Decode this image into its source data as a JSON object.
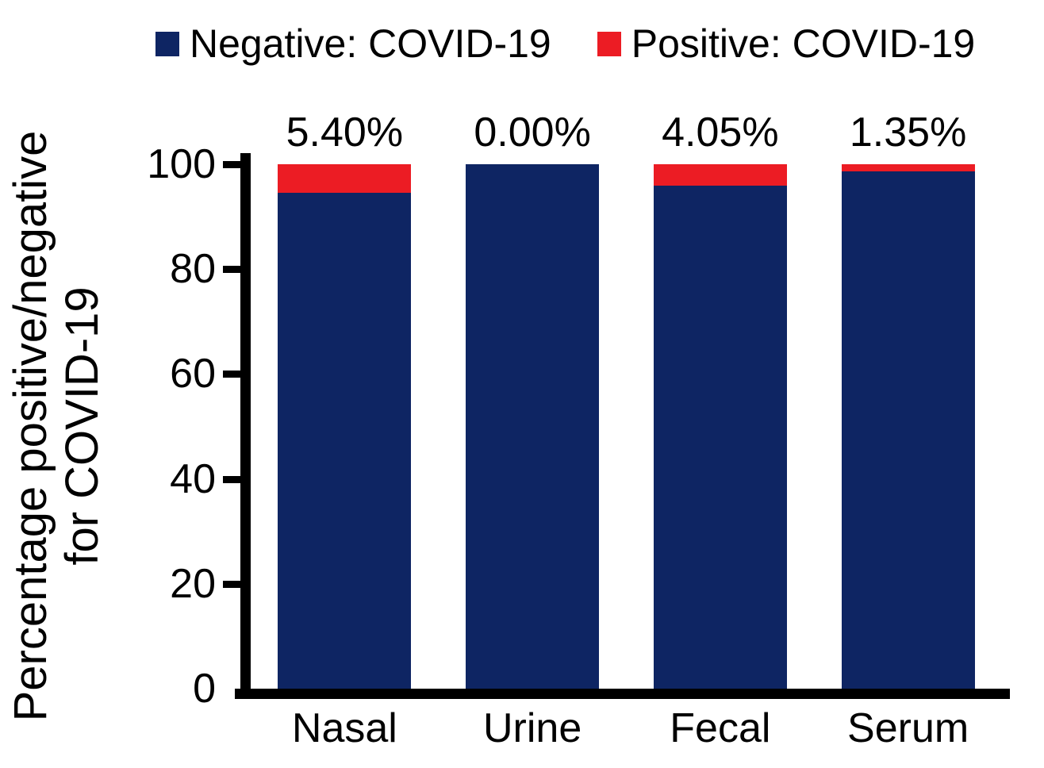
{
  "chart_data": {
    "type": "bar",
    "stacked": true,
    "title": "",
    "categories": [
      "Nasal",
      "Urine",
      "Fecal",
      "Serum"
    ],
    "series": [
      {
        "name": "Negative: COVID-19",
        "color": "#0E2563",
        "values": [
          94.6,
          100.0,
          95.95,
          98.65
        ]
      },
      {
        "name": "Positive: COVID-19",
        "color": "#EC1C24",
        "values": [
          5.4,
          0.0,
          4.05,
          1.35
        ]
      }
    ],
    "bar_labels": [
      "5.40%",
      "0.00%",
      "4.05%",
      "1.35%"
    ],
    "ylabel_lines": [
      "Percentage positive/negative",
      "for COVID-19"
    ],
    "xlabel": "",
    "yticks": [
      0,
      20,
      40,
      60,
      80,
      100
    ],
    "ylim": [
      0,
      100
    ],
    "legend_position": "top",
    "grid": false,
    "axis_color": "#000000",
    "text_color": "#000000",
    "background": "#FFFFFF"
  }
}
